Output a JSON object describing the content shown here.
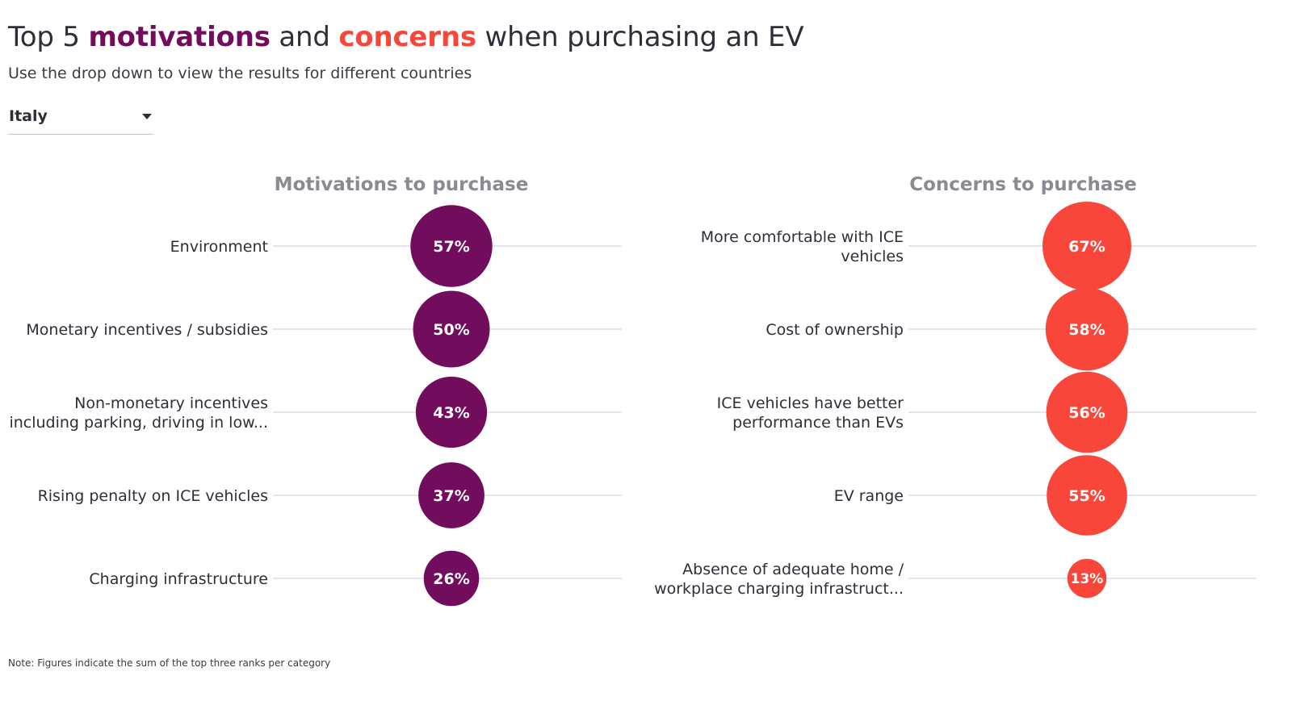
{
  "header": {
    "title_pre": "Top 5 ",
    "title_kw1": "motivations",
    "title_mid": " and ",
    "title_kw2": "concerns",
    "title_post": " when purchasing an EV",
    "subtitle": "Use the drop down to view the results for different countries"
  },
  "filter": {
    "selected": "Italy"
  },
  "colors": {
    "motivation": "#720d5d",
    "concern": "#f9463a",
    "gridline": "#e6e6ea"
  },
  "note": "Note: Figures indicate the sum of the top three ranks per category",
  "chart_data": [
    {
      "type": "scatter",
      "title": "Motivations to purchase",
      "color": "#720d5d",
      "categories": [
        [
          "Environment"
        ],
        [
          "Monetary incentives / subsidies"
        ],
        [
          "Non-monetary incentives",
          "including parking, driving in low..."
        ],
        [
          "Rising penalty on ICE vehicles"
        ],
        [
          "Charging infrastructure"
        ]
      ],
      "values": [
        57,
        50,
        43,
        37,
        26
      ],
      "value_labels": [
        "57%",
        "50%",
        "43%",
        "37%",
        "26%"
      ]
    },
    {
      "type": "scatter",
      "title": "Concerns to purchase",
      "color": "#f9463a",
      "categories": [
        [
          "More comfortable with ICE",
          "vehicles"
        ],
        [
          "Cost of ownership"
        ],
        [
          "ICE vehicles have better",
          "performance than EVs"
        ],
        [
          "EV range"
        ],
        [
          "Absence of adequate home /",
          "workplace charging infrastruct..."
        ]
      ],
      "values": [
        67,
        58,
        56,
        55,
        13
      ],
      "value_labels": [
        "67%",
        "58%",
        "56%",
        "55%",
        "13%"
      ]
    }
  ]
}
